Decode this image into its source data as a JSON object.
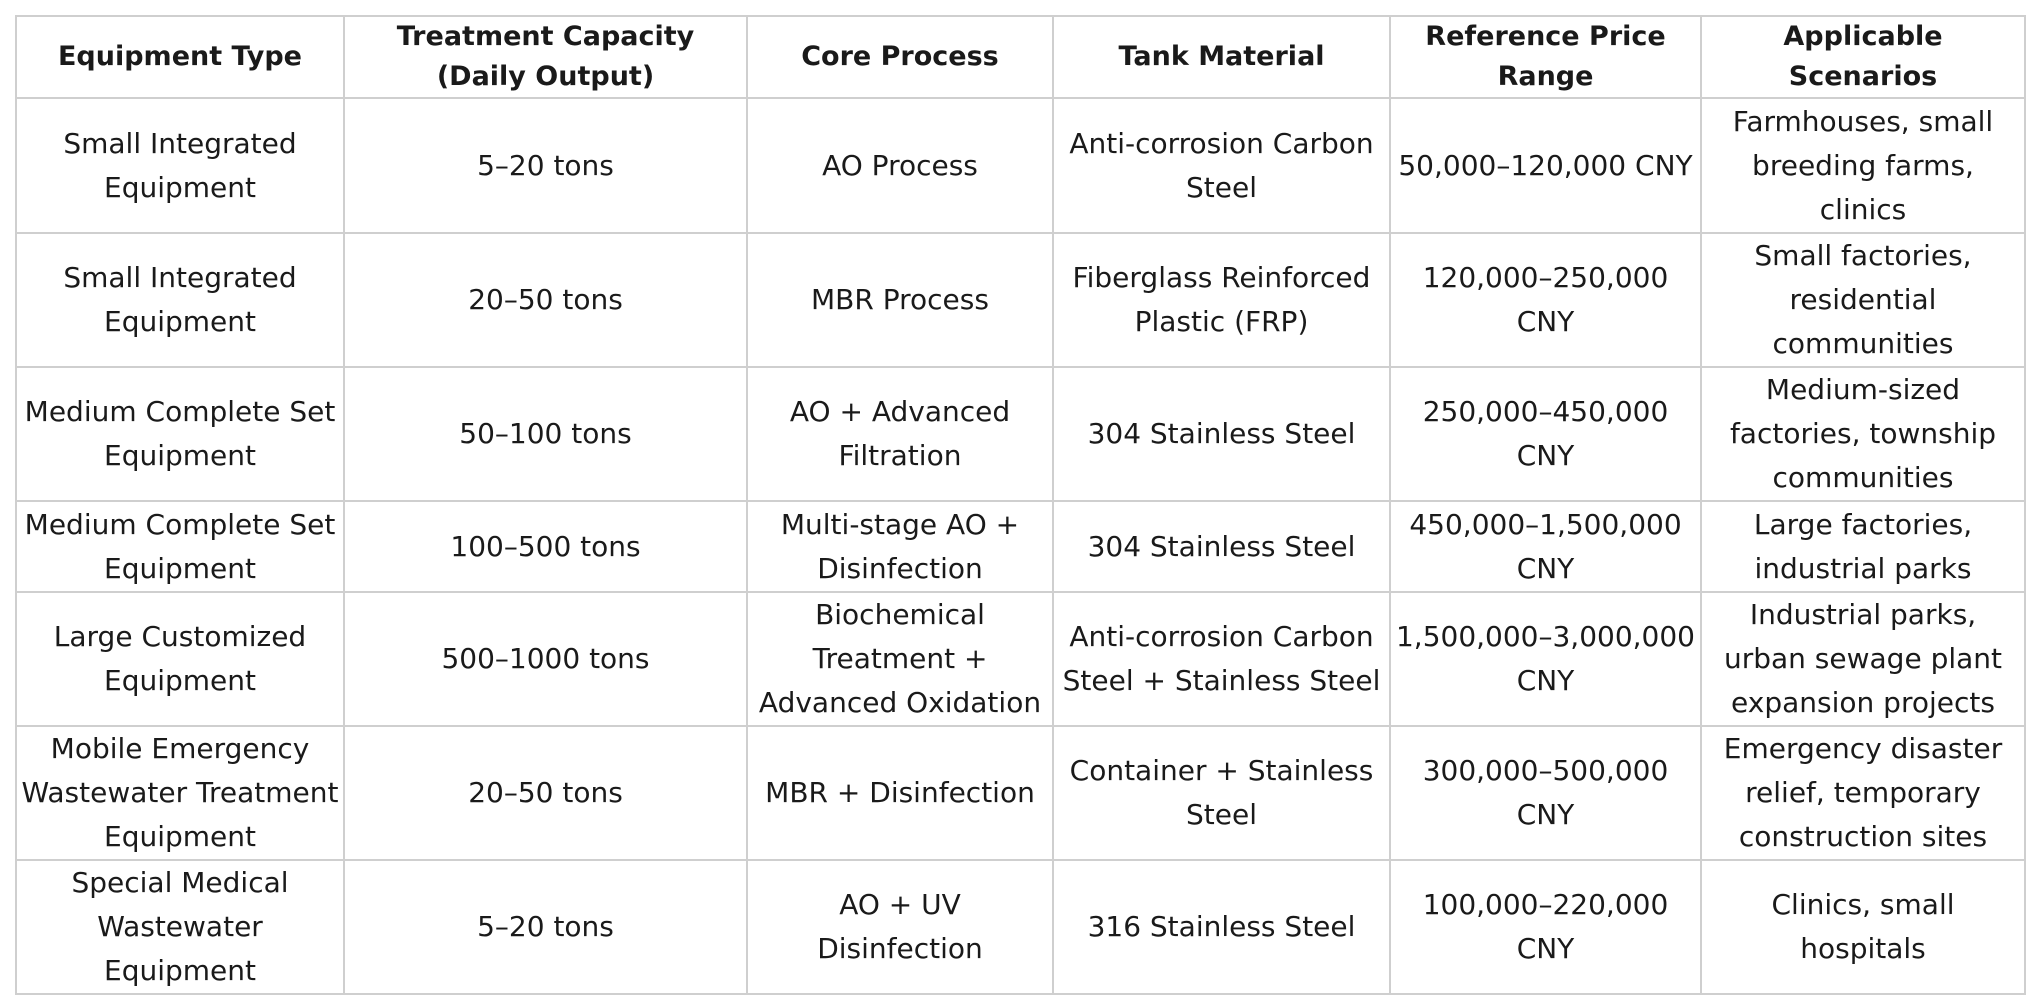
{
  "table": {
    "headers": [
      "Equipment Type",
      "Treatment Capacity (Daily Output)",
      "Core Process",
      "Tank Material",
      "Reference Price Range",
      "Applicable Scenarios"
    ],
    "rows": [
      [
        "Small Integrated Equipment",
        "5–20 tons",
        "AO Process",
        "Anti-corrosion Carbon Steel",
        "50,000–120,000 CNY",
        "Farmhouses, small breeding farms, clinics"
      ],
      [
        "Small Integrated Equipment",
        "20–50 tons",
        "MBR Process",
        "Fiberglass Reinforced Plastic (FRP)",
        "120,000–250,000 CNY",
        "Small factories, residential communities"
      ],
      [
        "Medium Complete Set Equipment",
        "50–100 tons",
        "AO + Advanced Filtration",
        "304 Stainless Steel",
        "250,000–450,000 CNY",
        "Medium-sized factories, township communities"
      ],
      [
        "Medium Complete Set Equipment",
        "100–500 tons",
        "Multi-stage AO + Disinfection",
        "304 Stainless Steel",
        "450,000–1,500,000 CNY",
        "Large factories, industrial parks"
      ],
      [
        "Large Customized Equipment",
        "500–1000 tons",
        "Biochemical Treatment + Advanced Oxidation",
        "Anti-corrosion Carbon Steel + Stainless Steel",
        "1,500,000–3,000,000 CNY",
        "Industrial parks, urban sewage plant expansion projects"
      ],
      [
        "Mobile Emergency Wastewater Treatment Equipment",
        "20–50 tons",
        "MBR + Disinfection",
        "Container + Stainless Steel",
        "300,000–500,000 CNY",
        "Emergency disaster relief, temporary construction sites"
      ],
      [
        "Special Medical Wastewater Equipment",
        "5–20 tons",
        "AO + UV Disinfection",
        "316 Stainless Steel",
        "100,000–220,000 CNY",
        "Clinics, small hospitals"
      ]
    ]
  },
  "colors": {
    "border": "#cfcfcf",
    "text": "#1a1a1a",
    "background": "#ffffff"
  }
}
